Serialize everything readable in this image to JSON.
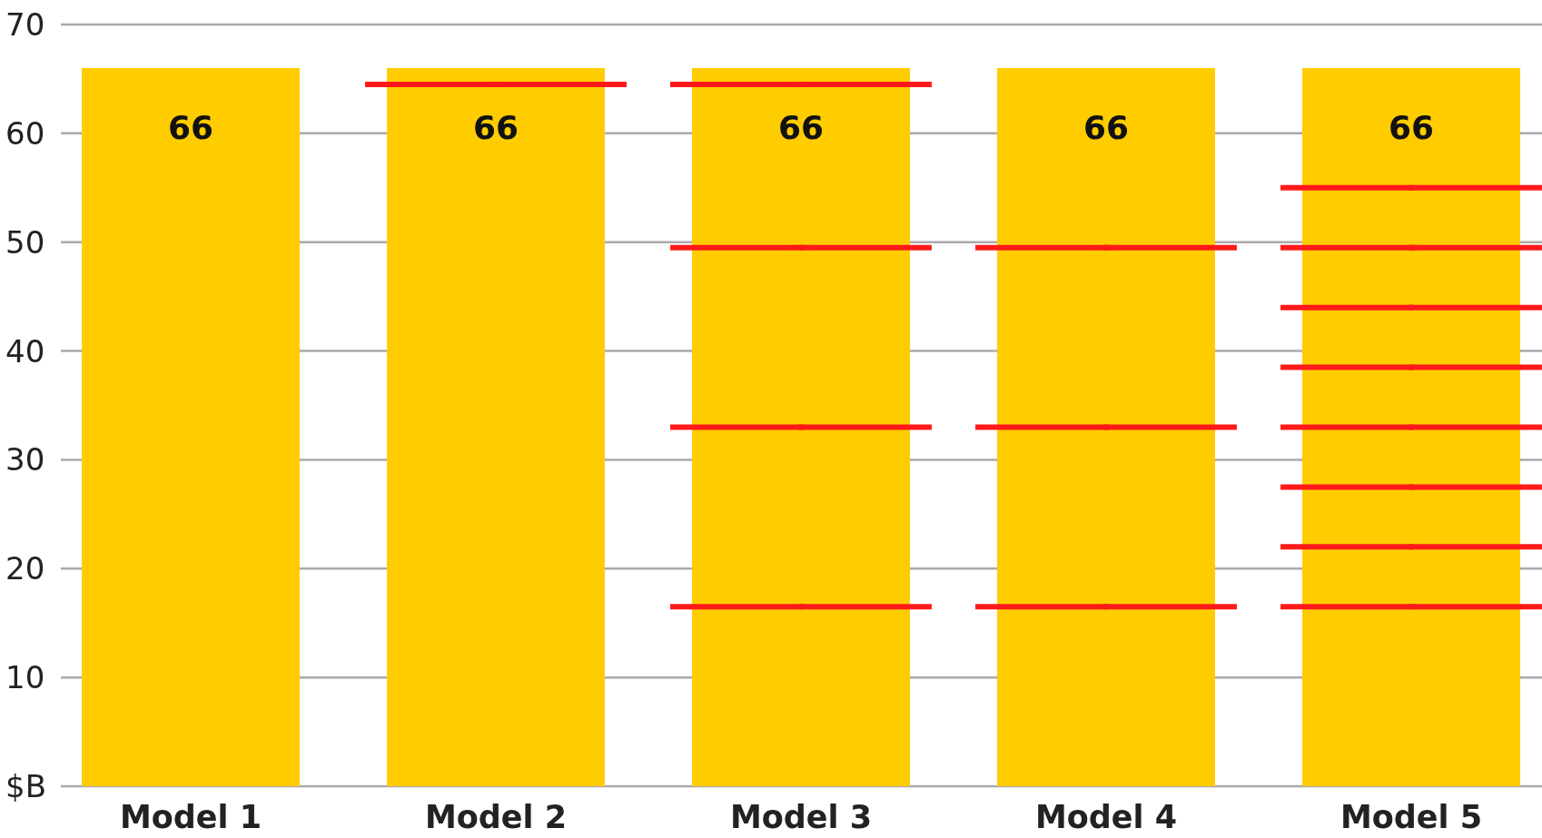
{
  "chart_data": {
    "type": "bar",
    "categories": [
      "Model 1",
      "Model 2",
      "Model 3",
      "Model 4",
      "Model 5"
    ],
    "series": [
      {
        "color": "#ffcc00",
        "values": [
          66,
          66,
          66,
          66,
          66
        ],
        "value_labels": [
          "66",
          "66",
          "66",
          "66",
          "66"
        ]
      },
      {
        "type": "scatter",
        "color": "#ff1a1a",
        "x": [
          "Model 2",
          "Model 3",
          "Model 3",
          "Model 3",
          "Model 3",
          "Model 4",
          "Model 4",
          "Model 4",
          "Model 5",
          "Model 5",
          "Model 5",
          "Model 5",
          "Model 5",
          "Model 5",
          "Model 5",
          "Model 5"
        ],
        "values": [
          64.5,
          64.5,
          49.5,
          33,
          16.5,
          49.5,
          33,
          16.5,
          55,
          49.5,
          44,
          38.5,
          33,
          27.5,
          22,
          16.5
        ]
      }
    ],
    "ylim": [
      0,
      70
    ],
    "yticks": [
      {
        "value": 0,
        "label": "$B"
      },
      10,
      20,
      30,
      40,
      50,
      60,
      70
    ],
    "grid": "y"
  }
}
